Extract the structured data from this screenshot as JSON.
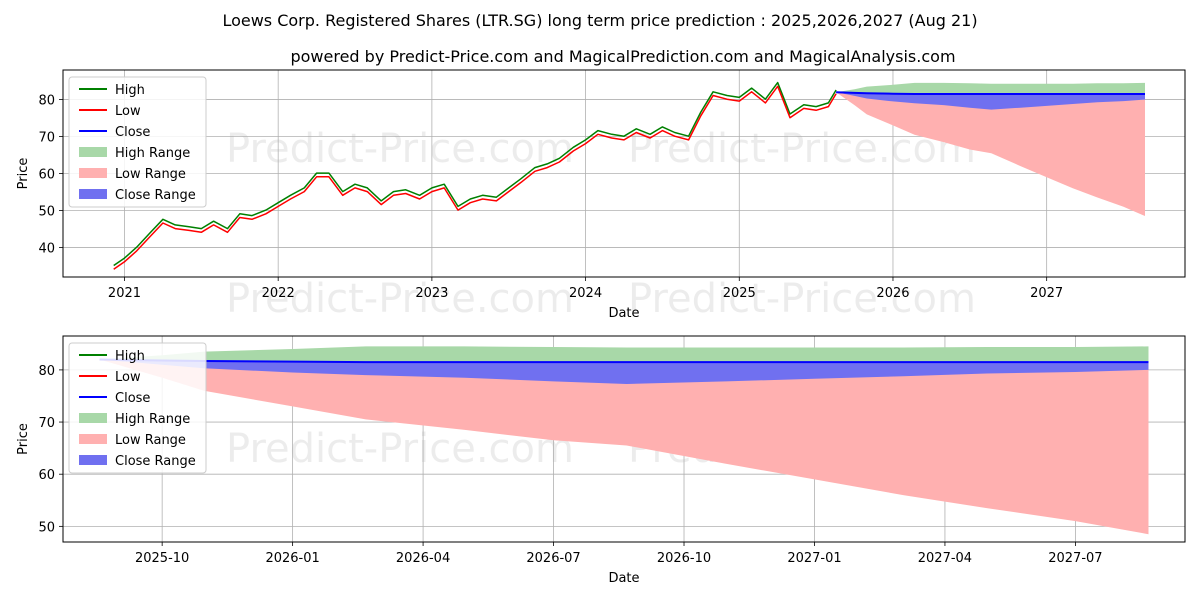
{
  "title": "Loews Corp. Registered Shares (LTR.SG) long term price prediction : 2025,2026,2027 (Aug 21)",
  "subtitle": "powered by Predict-Price.com and MagicalPrediction.com and MagicalAnalysis.com",
  "watermark": "Predict-Price.com",
  "colors": {
    "high": "#008000",
    "low": "#ff0000",
    "close": "#0000ff",
    "high_range": "#a8d8a8",
    "low_range": "#ffb0b0",
    "close_range": "#7070f0"
  },
  "legend": {
    "position": "top-left",
    "items": [
      {
        "label": "High",
        "kind": "line",
        "color": "#008000"
      },
      {
        "label": "Low",
        "kind": "line",
        "color": "#ff0000"
      },
      {
        "label": "Close",
        "kind": "line",
        "color": "#0000ff"
      },
      {
        "label": "High Range",
        "kind": "patch",
        "color": "#a8d8a8"
      },
      {
        "label": "Low Range",
        "kind": "patch",
        "color": "#ffb0b0"
      },
      {
        "label": "Close Range",
        "kind": "patch",
        "color": "#7070f0"
      }
    ]
  },
  "chart_data": [
    {
      "type": "line",
      "xlabel": "Date",
      "ylabel": "Price",
      "x_ticks": [
        "2021",
        "2022",
        "2023",
        "2024",
        "2025",
        "2026",
        "2027"
      ],
      "y_ticks": [
        40,
        50,
        60,
        70,
        80
      ],
      "xlim": [
        2020.6,
        2027.9
      ],
      "ylim": [
        32,
        88
      ],
      "grid": true,
      "history": {
        "x": [
          2020.93,
          2021.0,
          2021.08,
          2021.17,
          2021.25,
          2021.33,
          2021.42,
          2021.5,
          2021.58,
          2021.67,
          2021.75,
          2021.83,
          2021.92,
          2022.0,
          2022.08,
          2022.17,
          2022.25,
          2022.33,
          2022.42,
          2022.5,
          2022.58,
          2022.67,
          2022.75,
          2022.83,
          2022.92,
          2023.0,
          2023.08,
          2023.17,
          2023.25,
          2023.33,
          2023.42,
          2023.5,
          2023.58,
          2023.67,
          2023.75,
          2023.83,
          2023.92,
          2024.0,
          2024.08,
          2024.17,
          2024.25,
          2024.33,
          2024.42,
          2024.5,
          2024.58,
          2024.67,
          2024.75,
          2024.83,
          2024.92,
          2025.0,
          2025.08,
          2025.17,
          2025.25,
          2025.33,
          2025.42,
          2025.5,
          2025.58,
          2025.63
        ],
        "close": [
          34.5,
          36.5,
          39.5,
          43.5,
          47.0,
          45.5,
          45.0,
          44.5,
          46.5,
          44.5,
          48.5,
          48.0,
          49.5,
          51.5,
          53.5,
          55.5,
          59.5,
          59.5,
          54.5,
          56.5,
          55.5,
          52.0,
          54.5,
          55.0,
          53.5,
          55.5,
          56.5,
          50.5,
          52.5,
          53.5,
          53.0,
          55.5,
          58.0,
          61.0,
          62.0,
          63.5,
          66.5,
          68.5,
          71.0,
          70.0,
          69.5,
          71.5,
          70.0,
          72.0,
          70.5,
          69.5,
          76.0,
          81.5,
          80.5,
          80.0,
          82.5,
          79.5,
          84.0,
          75.5,
          78.0,
          77.5,
          78.5,
          82.0
        ]
      },
      "forecast": {
        "x": [
          2025.63,
          2025.75,
          2025.83,
          2026.0,
          2026.14,
          2026.33,
          2026.5,
          2026.64,
          2026.83,
          2027.0,
          2027.17,
          2027.33,
          2027.5,
          2027.64
        ],
        "close": [
          82.0,
          81.8,
          81.7,
          81.6,
          81.5,
          81.5,
          81.5,
          81.5,
          81.5,
          81.5,
          81.5,
          81.5,
          81.5,
          81.5
        ],
        "high_upper": [
          82.0,
          82.8,
          83.5,
          84.0,
          84.5,
          84.5,
          84.4,
          84.3,
          84.3,
          84.3,
          84.3,
          84.4,
          84.4,
          84.5
        ],
        "low_lower": [
          82.0,
          78.5,
          76.0,
          73.0,
          70.5,
          68.5,
          66.5,
          65.5,
          62.0,
          59.0,
          56.0,
          53.5,
          51.0,
          48.5
        ],
        "close_upper": [
          82.0,
          81.8,
          81.7,
          81.6,
          81.5,
          81.5,
          81.5,
          81.5,
          81.5,
          81.5,
          81.5,
          81.5,
          81.5,
          81.5
        ],
        "close_lower": [
          82.0,
          81.0,
          80.3,
          79.5,
          79.0,
          78.5,
          77.8,
          77.3,
          77.8,
          78.3,
          78.8,
          79.3,
          79.6,
          80.0
        ]
      }
    },
    {
      "type": "area",
      "xlabel": "Date",
      "ylabel": "Price",
      "x_ticks": [
        "2025-10",
        "2026-01",
        "2026-04",
        "2026-07",
        "2026-10",
        "2027-01",
        "2027-04",
        "2027-07"
      ],
      "y_ticks": [
        50,
        60,
        70,
        80
      ],
      "xlim": [
        2025.56,
        2027.71
      ],
      "ylim": [
        47,
        86.5
      ],
      "grid": true,
      "forecast": {
        "x": [
          2025.63,
          2025.75,
          2025.83,
          2026.0,
          2026.14,
          2026.33,
          2026.5,
          2026.64,
          2026.83,
          2027.0,
          2027.17,
          2027.33,
          2027.5,
          2027.64
        ],
        "close": [
          82.0,
          81.8,
          81.7,
          81.6,
          81.5,
          81.5,
          81.5,
          81.5,
          81.5,
          81.5,
          81.5,
          81.5,
          81.5,
          81.5
        ],
        "high_upper": [
          82.0,
          82.8,
          83.5,
          84.0,
          84.5,
          84.5,
          84.4,
          84.3,
          84.3,
          84.3,
          84.3,
          84.4,
          84.4,
          84.5
        ],
        "low_lower": [
          82.0,
          78.5,
          76.0,
          73.0,
          70.5,
          68.5,
          66.5,
          65.5,
          62.0,
          59.0,
          56.0,
          53.5,
          51.0,
          48.5
        ],
        "close_upper": [
          82.0,
          81.8,
          81.7,
          81.6,
          81.5,
          81.5,
          81.5,
          81.5,
          81.5,
          81.5,
          81.5,
          81.5,
          81.5,
          81.5
        ],
        "close_lower": [
          82.0,
          81.0,
          80.3,
          79.5,
          79.0,
          78.5,
          77.8,
          77.3,
          77.8,
          78.3,
          78.8,
          79.3,
          79.6,
          80.0
        ]
      }
    }
  ]
}
